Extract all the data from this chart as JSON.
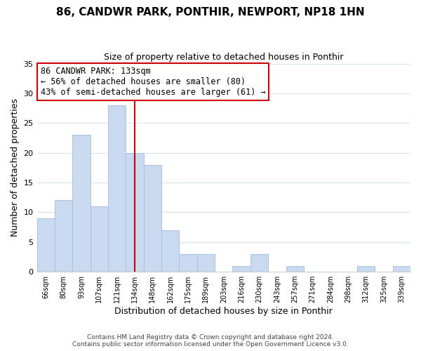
{
  "title": "86, CANDWR PARK, PONTHIR, NEWPORT, NP18 1HN",
  "subtitle": "Size of property relative to detached houses in Ponthir",
  "xlabel": "Distribution of detached houses by size in Ponthir",
  "ylabel": "Number of detached properties",
  "bar_color": "#c8d9f0",
  "bar_edge_color": "#a8c4e0",
  "bin_labels": [
    "66sqm",
    "80sqm",
    "93sqm",
    "107sqm",
    "121sqm",
    "134sqm",
    "148sqm",
    "162sqm",
    "175sqm",
    "189sqm",
    "203sqm",
    "216sqm",
    "230sqm",
    "243sqm",
    "257sqm",
    "271sqm",
    "284sqm",
    "298sqm",
    "312sqm",
    "325sqm",
    "339sqm"
  ],
  "counts": [
    9,
    12,
    23,
    11,
    28,
    20,
    18,
    7,
    3,
    3,
    0,
    1,
    3,
    0,
    1,
    0,
    0,
    0,
    1,
    0,
    1
  ],
  "vline_bin_index": 5,
  "vline_color": "#cc0000",
  "ylim": [
    0,
    35
  ],
  "yticks": [
    0,
    5,
    10,
    15,
    20,
    25,
    30,
    35
  ],
  "annotation_title": "86 CANDWR PARK: 133sqm",
  "annotation_line1": "← 56% of detached houses are smaller (80)",
  "annotation_line2": "43% of semi-detached houses are larger (61) →",
  "annotation_box_color": "#ffffff",
  "annotation_box_edge": "#cc0000",
  "footer1": "Contains HM Land Registry data © Crown copyright and database right 2024.",
  "footer2": "Contains public sector information licensed under the Open Government Licence v3.0.",
  "background_color": "#ffffff",
  "grid_color": "#d8e4f0"
}
